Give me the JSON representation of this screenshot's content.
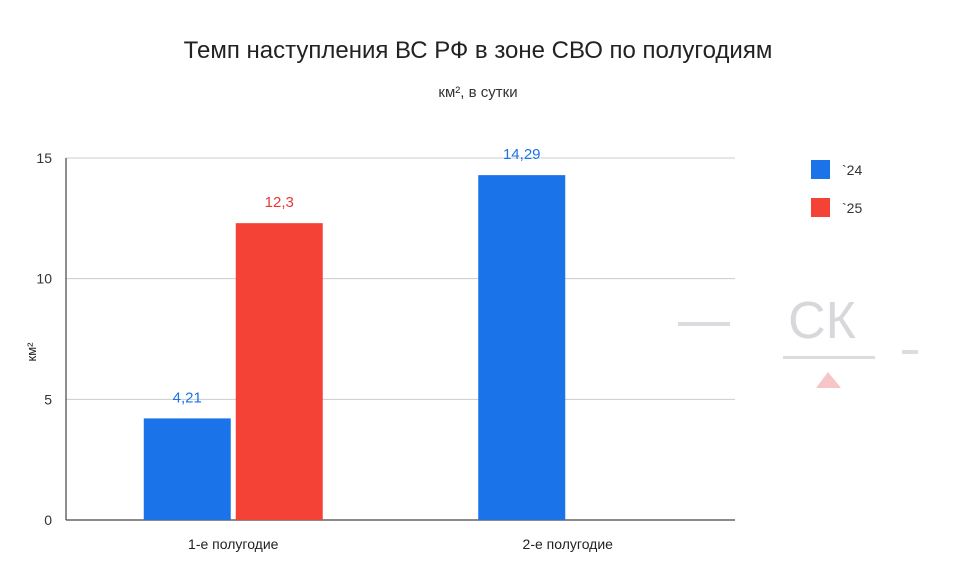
{
  "chart_data": {
    "type": "bar",
    "title": "Темп наступления ВС РФ в зоне СВО по полугодиям",
    "subtitle": "км², в сутки",
    "ylabel": "км²",
    "xlabel": "",
    "categories": [
      "1-е полугодие",
      "2-е полугодие"
    ],
    "ylim": [
      0,
      15
    ],
    "yticks": [
      0,
      5,
      10,
      15
    ],
    "grid": true,
    "legend_position": "right",
    "series": [
      {
        "name": "`24",
        "color": "#1a73e8",
        "label_color": "#1a73e8",
        "values": [
          4.21,
          14.29
        ],
        "labels": [
          "4,21",
          "14,29"
        ]
      },
      {
        "name": "`25",
        "color": "#f44336",
        "label_color": "#e53935",
        "values": [
          12.3,
          null
        ],
        "labels": [
          "12,3",
          ""
        ]
      }
    ]
  },
  "watermark": {
    "text": "СК"
  }
}
